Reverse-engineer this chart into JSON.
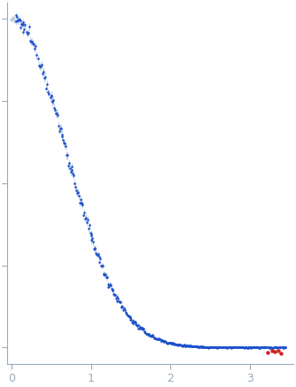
{
  "title": "",
  "xlabel": "",
  "ylabel": "",
  "xlim": [
    -0.05,
    3.55
  ],
  "point_color": "#1a4fcc",
  "error_color": "#a8bedd",
  "outlier_color": "#cc2222",
  "background": "#ffffff",
  "axis_color": "#99aabb",
  "tick_color": "#99aabb",
  "xticks": [
    0,
    1,
    2,
    3
  ],
  "figsize": [
    3.34,
    4.37
  ],
  "dpi": 100,
  "low_q_color": "#bbccdd",
  "low_q_error_color": "#ccddee"
}
